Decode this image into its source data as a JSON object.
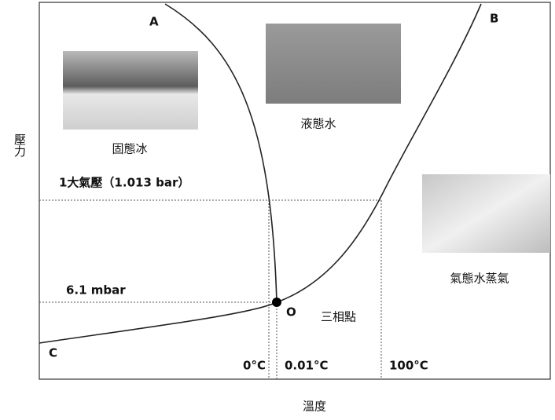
{
  "axes": {
    "y_label": "壓力",
    "x_label": "溫度"
  },
  "points": {
    "a": "A",
    "b": "B",
    "c": "C",
    "o": "O",
    "triple_point": "三相點"
  },
  "phases": {
    "solid": "固態冰",
    "liquid": "液態水",
    "gas": "氣態水蒸氣"
  },
  "pressures": {
    "atmosphere": "1大氣壓（1.013 bar）",
    "triple": "6.1 mbar"
  },
  "temperatures": {
    "freezing": "0°C",
    "triple": "0.01°C",
    "boiling": "100°C"
  }
}
